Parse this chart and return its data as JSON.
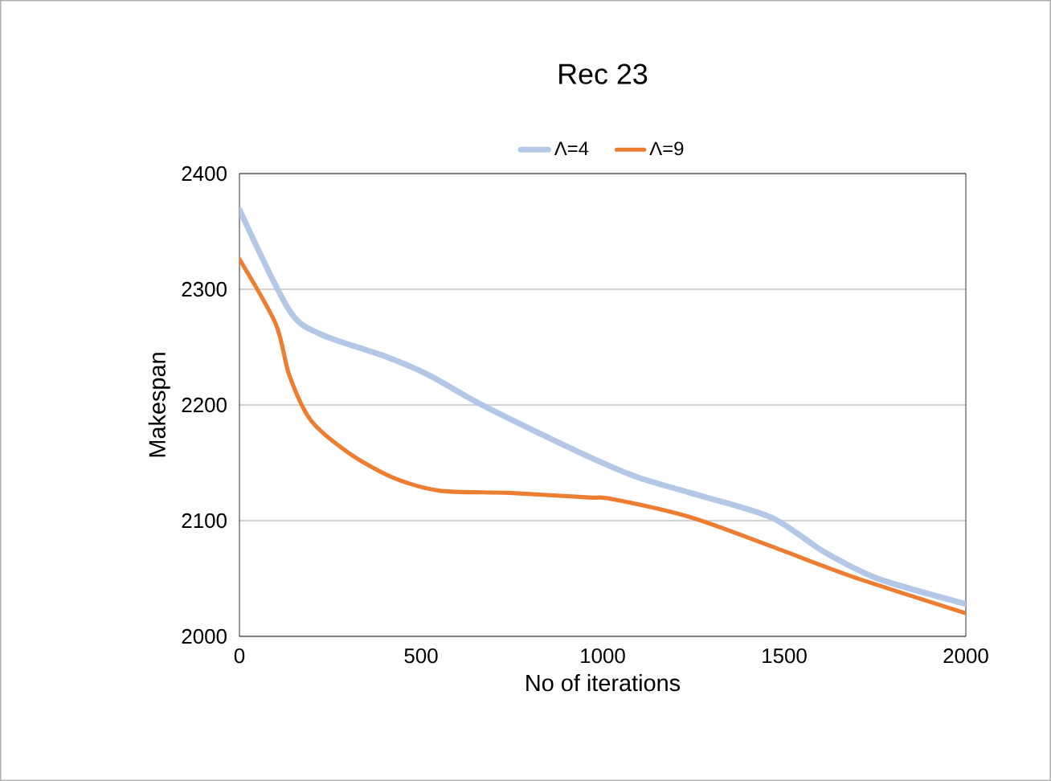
{
  "chart_data": {
    "type": "line",
    "title": "Rec 23",
    "xlabel": "No of iterations",
    "ylabel": "Makespan",
    "xlim": [
      0,
      2000
    ],
    "xticks": [
      0,
      500,
      1000,
      1500,
      2000
    ],
    "ylim": [
      2000,
      2400
    ],
    "yticks": [
      2000,
      2100,
      2200,
      2300,
      2400
    ],
    "grid": "y",
    "legend": "top",
    "marker": "none",
    "line_style": "solid",
    "series": [
      {
        "name": "Λ=4",
        "color": "#b4c7e7",
        "x": [
          0,
          137,
          225,
          402,
          520,
          668,
          889,
          1021,
          1110,
          1242,
          1463,
          1610,
          1757,
          2000
        ],
        "values": [
          2369,
          2282,
          2261,
          2242,
          2226,
          2200,
          2166,
          2147,
          2136,
          2124,
          2103,
          2073,
          2050,
          2028
        ]
      },
      {
        "name": "Λ=9",
        "color": "#ed7d31",
        "x": [
          0,
          100,
          137,
          196,
          299,
          417,
          550,
          742,
          963,
          1021,
          1242,
          1463,
          1684,
          2000
        ],
        "values": [
          2326,
          2270,
          2226,
          2187,
          2159,
          2138,
          2126,
          2124,
          2120,
          2119,
          2103,
          2078,
          2052,
          2020
        ]
      }
    ]
  }
}
